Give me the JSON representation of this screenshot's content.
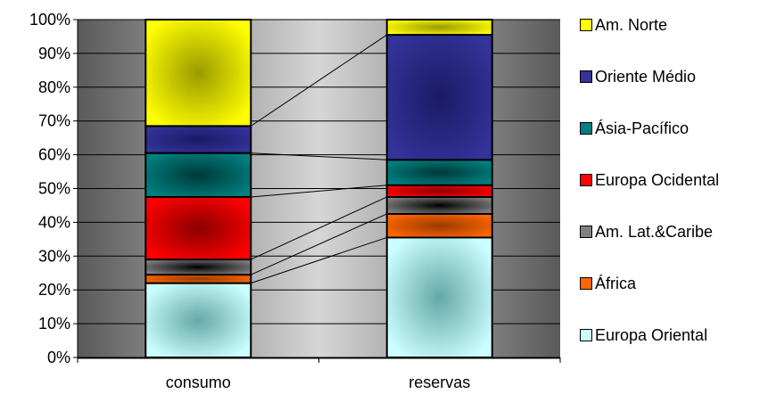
{
  "chart_data": {
    "type": "bar",
    "stacked": "percent",
    "categories": [
      "consumo",
      "reservas"
    ],
    "series": [
      {
        "name": "Europa Oriental",
        "values": [
          22,
          35.5
        ],
        "color": "#CCFFFF",
        "color_dark": "#66A8A8"
      },
      {
        "name": "África",
        "values": [
          2.5,
          7
        ],
        "color": "#FF6600",
        "color_dark": "#9A3A00"
      },
      {
        "name": "Am. Lat.&Caribe",
        "values": [
          4.5,
          5
        ],
        "color": "#808080",
        "color_dark": "#000000"
      },
      {
        "name": "Europa Ocidental",
        "values": [
          18.5,
          3.5
        ],
        "color": "#FF0000",
        "color_dark": "#8A0000"
      },
      {
        "name": "Ásia-Pacífico",
        "values": [
          13,
          7.5
        ],
        "color": "#008080",
        "color_dark": "#003838"
      },
      {
        "name": "Oriente Médio",
        "values": [
          8,
          37
        ],
        "color": "#333399",
        "color_dark": "#1A1A66"
      },
      {
        "name": "Am. Norte",
        "values": [
          31.5,
          4.5
        ],
        "color": "#FFFF00",
        "color_dark": "#9A9A00"
      }
    ],
    "yticks": [
      "0%",
      "10%",
      "20%",
      "30%",
      "40%",
      "50%",
      "60%",
      "70%",
      "80%",
      "90%",
      "100%"
    ],
    "ylim": [
      0,
      100
    ],
    "series_lines": true,
    "legend_position": "right",
    "plot_background": "gray-gradient"
  }
}
